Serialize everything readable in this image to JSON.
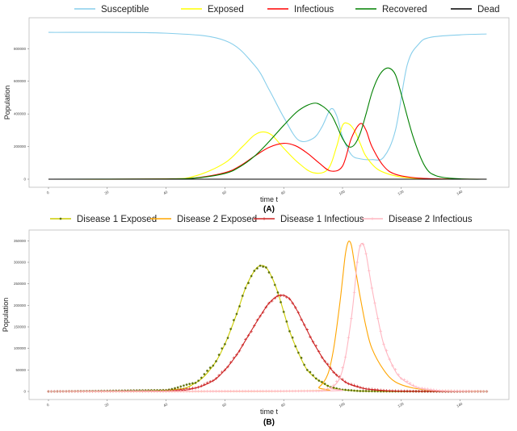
{
  "figure": {
    "panel_a_label": "(A)",
    "panel_b_label": "(B)"
  },
  "chart_data": [
    {
      "type": "line",
      "panel": "(A)",
      "xlabel": "time t",
      "ylabel": "Population",
      "xlim": [
        0,
        150
      ],
      "ylim": [
        0,
        950000
      ],
      "xticks": [
        0,
        20,
        40,
        60,
        80,
        100,
        120,
        140
      ],
      "yticks": [
        0,
        200000,
        400000,
        600000,
        800000
      ],
      "grid": false,
      "legend_position": "top",
      "series": [
        {
          "name": "Susceptible",
          "color": "#87ceeb",
          "x": [
            0,
            40,
            60,
            70,
            75,
            80,
            85,
            90,
            93,
            96,
            98,
            100,
            103,
            106,
            110,
            114,
            118,
            122,
            126,
            130,
            140,
            149
          ],
          "y": [
            900000,
            895000,
            850000,
            700000,
            550000,
            380000,
            240000,
            250000,
            320000,
            430000,
            390000,
            260000,
            150000,
            125000,
            120000,
            135000,
            300000,
            700000,
            830000,
            870000,
            885000,
            890000
          ]
        },
        {
          "name": "Exposed",
          "color": "#ffff00",
          "x": [
            0,
            40,
            50,
            60,
            66,
            70,
            73,
            76,
            80,
            85,
            90,
            95,
            98,
            100,
            102,
            104,
            106,
            108,
            112,
            118,
            125,
            135,
            149
          ],
          "y": [
            0,
            2000,
            20000,
            100000,
            200000,
            270000,
            290000,
            270000,
            190000,
            100000,
            40000,
            60000,
            200000,
            330000,
            340000,
            300000,
            220000,
            140000,
            60000,
            20000,
            5000,
            1000,
            0
          ]
        },
        {
          "name": "Infectious",
          "color": "#ff0000",
          "x": [
            0,
            40,
            50,
            60,
            65,
            70,
            75,
            80,
            84,
            88,
            92,
            96,
            100,
            103,
            106,
            108,
            110,
            114,
            118,
            125,
            135,
            149
          ],
          "y": [
            0,
            1000,
            8000,
            40000,
            80000,
            140000,
            195000,
            220000,
            205000,
            160000,
            100000,
            50000,
            80000,
            250000,
            340000,
            300000,
            200000,
            80000,
            30000,
            8000,
            1000,
            0
          ]
        },
        {
          "name": "Recovered",
          "color": "#008000",
          "x": [
            0,
            40,
            50,
            60,
            65,
            70,
            75,
            80,
            85,
            90,
            93,
            96,
            98,
            100,
            102,
            104,
            106,
            108,
            110,
            112,
            114,
            116,
            118,
            120,
            124,
            128,
            132,
            140,
            149
          ],
          "y": [
            0,
            1000,
            7000,
            35000,
            75000,
            140000,
            230000,
            330000,
            420000,
            465000,
            450000,
            400000,
            330000,
            250000,
            200000,
            210000,
            280000,
            400000,
            530000,
            620000,
            670000,
            680000,
            640000,
            520000,
            260000,
            80000,
            20000,
            2000,
            0
          ]
        },
        {
          "name": "Dead",
          "color": "#000000",
          "x": [
            0,
            149
          ],
          "y": [
            0,
            0
          ]
        }
      ]
    },
    {
      "type": "line",
      "panel": "(B)",
      "xlabel": "time t",
      "ylabel": "Population",
      "xlim": [
        0,
        150
      ],
      "ylim": [
        0,
        360000
      ],
      "xticks": [
        0,
        20,
        40,
        60,
        80,
        100,
        120,
        140
      ],
      "yticks": [
        0,
        50000,
        100000,
        150000,
        200000,
        250000,
        300000,
        350000
      ],
      "grid": false,
      "legend_position": "top",
      "series": [
        {
          "name": "Disease 1 Exposed",
          "color": "#cccc00",
          "marker": "star",
          "x": [
            0,
            40,
            50,
            56,
            60,
            64,
            67,
            70,
            72,
            74,
            76,
            78,
            80,
            82,
            85,
            88,
            92,
            96,
            100,
            106,
            115,
            149
          ],
          "y": [
            0,
            3000,
            20000,
            60000,
            110000,
            180000,
            240000,
            280000,
            292000,
            288000,
            265000,
            230000,
            185000,
            140000,
            90000,
            50000,
            25000,
            10000,
            4000,
            1000,
            200,
            0
          ]
        },
        {
          "name": "Disease 2 Exposed",
          "color": "#ffa500",
          "marker": "none",
          "x": [
            0,
            88,
            92,
            95,
            97,
            99,
            100,
            101,
            102,
            103,
            104,
            106,
            108,
            110,
            114,
            118,
            124,
            132,
            149
          ],
          "y": [
            0,
            1000,
            10000,
            40000,
            100000,
            200000,
            260000,
            320000,
            348000,
            340000,
            300000,
            220000,
            150000,
            100000,
            50000,
            22000,
            8000,
            2000,
            0
          ]
        },
        {
          "name": "Disease 1 Infectious",
          "color": "#cc2222",
          "marker": "plus",
          "x": [
            0,
            40,
            50,
            56,
            60,
            64,
            68,
            72,
            75,
            78,
            80,
            82,
            84,
            87,
            90,
            94,
            98,
            102,
            108,
            116,
            126,
            149
          ],
          "y": [
            0,
            1000,
            8000,
            25000,
            50000,
            85000,
            130000,
            175000,
            205000,
            222000,
            223000,
            215000,
            195000,
            155000,
            115000,
            70000,
            38000,
            18000,
            6000,
            1500,
            300,
            0
          ]
        },
        {
          "name": "Disease 2 Infectious",
          "color": "#ffb6c1",
          "marker": "plus",
          "x": [
            0,
            92,
            96,
            99,
            101,
            103,
            104,
            105,
            106,
            107,
            108,
            109,
            110,
            112,
            114,
            117,
            120,
            126,
            134,
            149
          ],
          "y": [
            0,
            1000,
            8000,
            30000,
            80000,
            170000,
            230000,
            300000,
            338000,
            342000,
            320000,
            280000,
            240000,
            170000,
            110000,
            60000,
            30000,
            8000,
            1500,
            0
          ]
        }
      ]
    }
  ]
}
